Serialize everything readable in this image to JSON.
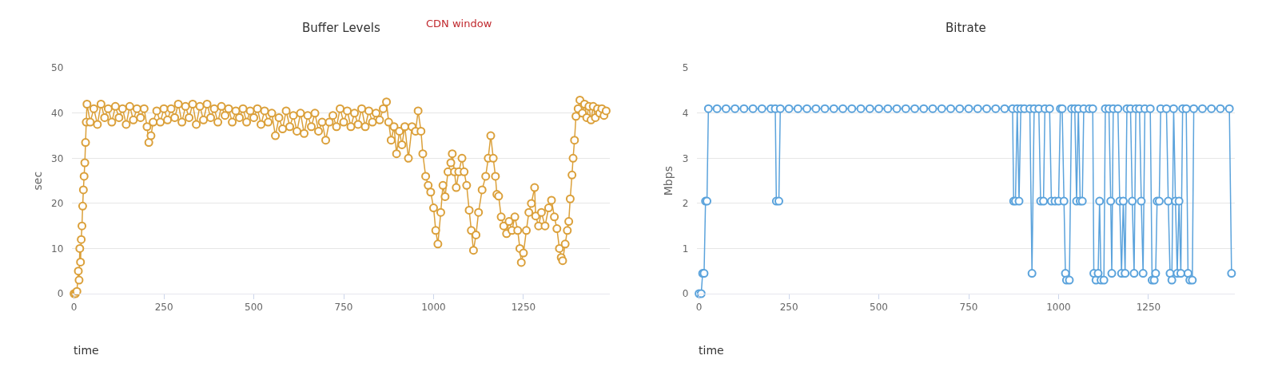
{
  "chart_data": [
    {
      "type": "line",
      "title": "Buffer Levels",
      "xlabel": "time",
      "ylabel": "sec",
      "annotations": [
        "CDN window"
      ],
      "xlim": [
        -5,
        1490
      ],
      "xticks": [
        0,
        250,
        500,
        750,
        1000,
        1250
      ],
      "ylim": [
        0,
        50
      ],
      "yticks": [
        0,
        10,
        20,
        30,
        40,
        50
      ],
      "grid": "y",
      "marker": "circle",
      "series": [
        {
          "color": "#dba03a",
          "x": [
            0,
            4,
            8,
            12,
            14,
            16,
            18,
            20,
            22,
            24,
            26,
            28,
            30,
            32,
            34,
            36,
            45,
            55,
            65,
            75,
            85,
            95,
            105,
            115,
            125,
            135,
            145,
            155,
            165,
            175,
            185,
            195,
            203,
            208,
            214,
            220,
            230,
            240,
            250,
            260,
            270,
            280,
            290,
            300,
            310,
            320,
            330,
            340,
            350,
            360,
            370,
            380,
            390,
            400,
            410,
            420,
            430,
            440,
            450,
            460,
            470,
            480,
            490,
            500,
            510,
            520,
            530,
            540,
            550,
            560,
            570,
            580,
            590,
            600,
            610,
            620,
            630,
            640,
            650,
            660,
            670,
            680,
            690,
            700,
            710,
            720,
            730,
            740,
            750,
            760,
            770,
            780,
            790,
            800,
            810,
            820,
            830,
            840,
            850,
            860,
            869,
            875,
            882,
            890,
            897,
            905,
            912,
            920,
            930,
            940,
            950,
            957,
            965,
            970,
            978,
            985,
            992,
            1000,
            1006,
            1012,
            1020,
            1026,
            1032,
            1040,
            1048,
            1052,
            1058,
            1063,
            1070,
            1079,
            1085,
            1092,
            1099,
            1105,
            1111,
            1118,
            1125,
            1135,
            1145,
            1152,
            1159,
            1166,
            1172,
            1176,
            1181,
            1188,
            1195,
            1203,
            1210,
            1218,
            1226,
            1234,
            1240,
            1244,
            1250,
            1258,
            1265,
            1272,
            1281,
            1284,
            1292,
            1300,
            1310,
            1320,
            1328,
            1336,
            1343,
            1350,
            1355,
            1359,
            1366,
            1372,
            1376,
            1380,
            1385,
            1388,
            1392,
            1396,
            1402,
            1407,
            1414,
            1420,
            1426,
            1432,
            1438,
            1444,
            1450,
            1456,
            1462,
            1468,
            1474,
            1480
          ],
          "values": [
            0,
            0,
            0.5,
            5,
            3,
            10,
            7,
            12,
            15,
            19.4,
            23,
            26,
            29,
            33.5,
            38,
            42,
            38,
            41,
            37.5,
            42,
            39,
            41,
            38,
            41.5,
            39,
            41,
            37.5,
            41.5,
            38.5,
            41,
            39,
            41,
            37,
            33.5,
            35,
            38,
            40.5,
            38,
            41,
            38.5,
            41,
            39,
            42,
            38,
            41.5,
            39,
            42,
            37.5,
            41.5,
            38.5,
            42,
            39,
            41,
            38,
            41.5,
            39.5,
            41,
            38,
            40.5,
            39,
            41,
            38,
            40.5,
            39,
            41,
            37.5,
            40.5,
            38,
            40,
            35,
            39,
            36.5,
            40.5,
            37,
            39.5,
            36,
            40,
            35.5,
            39.5,
            37,
            40,
            36,
            38,
            34,
            38,
            39.5,
            37,
            41,
            38,
            40.5,
            37,
            40,
            37.5,
            41,
            37,
            40.5,
            38,
            40,
            38.5,
            41,
            42.5,
            38,
            34,
            37,
            31,
            36,
            33,
            37,
            30,
            37,
            36,
            40.5,
            36,
            31,
            26,
            24,
            22.5,
            19,
            14,
            11,
            18,
            24,
            21.5,
            27,
            29,
            31,
            27,
            23.5,
            27,
            30,
            27,
            24,
            18.5,
            14,
            9.6,
            13,
            18,
            23,
            26,
            30,
            35,
            30,
            26,
            22,
            21.6,
            17,
            15,
            13.3,
            16,
            14,
            17,
            14,
            10,
            6.9,
            9,
            14,
            18,
            20,
            23.5,
            17.2,
            15,
            18,
            15,
            19,
            20.7,
            17,
            14.4,
            10,
            8,
            7.3,
            11,
            14,
            16,
            21,
            26.3,
            30,
            34,
            39.3,
            41,
            42.9,
            40,
            42,
            39,
            41.5,
            38.5,
            41.5,
            39,
            41,
            40,
            41,
            39.5,
            40.5
          ]
        }
      ]
    },
    {
      "type": "line",
      "title": "Bitrate",
      "xlabel": "time",
      "ylabel": "Mbps",
      "xlim": [
        -5,
        1490
      ],
      "xticks": [
        0,
        250,
        500,
        750,
        1000,
        1250
      ],
      "ylim": [
        0,
        5
      ],
      "yticks": [
        0,
        1,
        2,
        3,
        4,
        5
      ],
      "grid": "y",
      "marker": "circle",
      "series": [
        {
          "color": "#5ba3dc",
          "x": [
            0,
            6,
            10,
            14,
            18,
            22,
            26,
            50,
            75,
            100,
            125,
            150,
            175,
            200,
            212,
            215,
            222,
            226,
            250,
            275,
            300,
            325,
            350,
            375,
            400,
            425,
            450,
            475,
            500,
            525,
            550,
            575,
            600,
            625,
            650,
            675,
            700,
            725,
            750,
            775,
            800,
            825,
            850,
            872,
            875,
            880,
            885,
            890,
            895,
            905,
            920,
            926,
            932,
            945,
            950,
            958,
            962,
            975,
            980,
            990,
            1000,
            1005,
            1010,
            1015,
            1019,
            1022,
            1030,
            1036,
            1045,
            1050,
            1055,
            1060,
            1066,
            1070,
            1085,
            1095,
            1098,
            1104,
            1110,
            1114,
            1118,
            1126,
            1130,
            1140,
            1145,
            1148,
            1152,
            1165,
            1170,
            1175,
            1180,
            1185,
            1190,
            1200,
            1205,
            1210,
            1215,
            1225,
            1230,
            1235,
            1240,
            1255,
            1260,
            1266,
            1270,
            1274,
            1280,
            1284,
            1300,
            1305,
            1310,
            1315,
            1320,
            1325,
            1330,
            1335,
            1340,
            1345,
            1355,
            1360,
            1365,
            1372,
            1376,
            1400,
            1425,
            1450,
            1475,
            1481
          ],
          "values": [
            0,
            0,
            0.45,
            0.45,
            2.05,
            2.05,
            4.1,
            4.1,
            4.1,
            4.1,
            4.1,
            4.1,
            4.1,
            4.1,
            4.1,
            2.05,
            2.05,
            4.1,
            4.1,
            4.1,
            4.1,
            4.1,
            4.1,
            4.1,
            4.1,
            4.1,
            4.1,
            4.1,
            4.1,
            4.1,
            4.1,
            4.1,
            4.1,
            4.1,
            4.1,
            4.1,
            4.1,
            4.1,
            4.1,
            4.1,
            4.1,
            4.1,
            4.1,
            4.1,
            2.05,
            2.05,
            4.1,
            2.05,
            4.1,
            4.1,
            4.1,
            0.45,
            4.1,
            4.1,
            2.05,
            2.05,
            4.1,
            4.1,
            2.05,
            2.05,
            2.05,
            4.1,
            4.1,
            2.05,
            0.45,
            0.3,
            0.3,
            4.1,
            4.1,
            2.05,
            4.1,
            2.05,
            2.05,
            4.1,
            4.1,
            4.1,
            0.45,
            0.3,
            0.45,
            2.05,
            0.3,
            0.3,
            4.1,
            4.1,
            2.05,
            0.45,
            4.1,
            4.1,
            2.05,
            0.45,
            2.05,
            0.45,
            4.1,
            4.1,
            2.05,
            0.45,
            4.1,
            4.1,
            2.05,
            0.45,
            4.1,
            4.1,
            0.3,
            0.3,
            0.45,
            2.05,
            2.05,
            4.1,
            4.1,
            2.05,
            0.45,
            0.3,
            4.1,
            2.05,
            0.45,
            2.05,
            0.45,
            4.1,
            4.1,
            0.45,
            0.3,
            0.3,
            4.1,
            4.1,
            4.1,
            4.1,
            4.1,
            0.45
          ]
        }
      ]
    }
  ]
}
